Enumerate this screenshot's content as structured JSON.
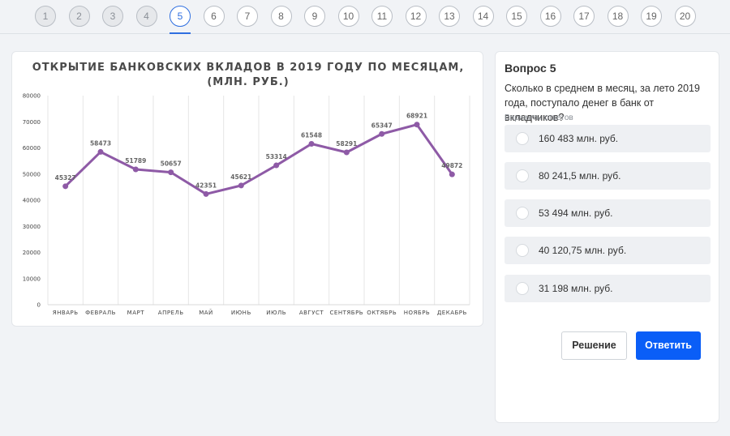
{
  "question_nav": {
    "numbers": [
      "1",
      "2",
      "3",
      "4",
      "5",
      "6",
      "7",
      "8",
      "9",
      "10",
      "11",
      "12",
      "13",
      "14",
      "15",
      "16",
      "17",
      "18",
      "19",
      "20"
    ],
    "done": [
      1,
      2,
      3,
      4
    ],
    "active": 5
  },
  "chart": {
    "title_line1": "ОТКРЫТИЕ БАНКОВСКИХ ВКЛАДОВ В 2019 ГОДУ ПО МЕСЯЦАМ,",
    "title_line2": "(МЛН. РУБ.)"
  },
  "chart_data": {
    "type": "line",
    "title": "ОТКРЫТИЕ БАНКОВСКИХ ВКЛАДОВ В 2019 ГОДУ ПО МЕСЯЦАМ, (МЛН. РУБ.)",
    "categories": [
      "ЯНВАРЬ",
      "ФЕВРАЛЬ",
      "МАРТ",
      "АПРЕЛЬ",
      "МАЙ",
      "ИЮНЬ",
      "ИЮЛЬ",
      "АВГУСТ",
      "СЕНТЯБРЬ",
      "ОКТЯБРЬ",
      "НОЯБРЬ",
      "ДЕКАБРЬ"
    ],
    "values": [
      45327,
      58473,
      51789,
      50657,
      42351,
      45621,
      53314,
      61548,
      58291,
      65347,
      68921,
      49872
    ],
    "data_labels": [
      "45327",
      "58473",
      "51789",
      "50657",
      "42351",
      "45621",
      "53314",
      "61548",
      "58291",
      "65347",
      "68921",
      "49872"
    ],
    "yticks": [
      "0",
      "10000",
      "20000",
      "30000",
      "40000",
      "50000",
      "60000",
      "70000",
      "80000"
    ],
    "ylim": [
      0,
      80000
    ],
    "grid": "vertical",
    "color": "#8e5aa6"
  },
  "question": {
    "title": "Вопрос 5",
    "text": "Сколько в среднем в месяц, за лето 2019 года, поступало денег в банк от вкладчиков?",
    "hint": "Варианты ответов",
    "options": [
      "160 483 млн. руб.",
      "80 241,5 млн. руб.",
      "53 494 млн. руб.",
      "40 120,75 млн. руб.",
      "31 198 млн. руб."
    ]
  },
  "buttons": {
    "solution": "Решение",
    "answer": "Ответить",
    "answer_color": "#0a5ef7"
  }
}
